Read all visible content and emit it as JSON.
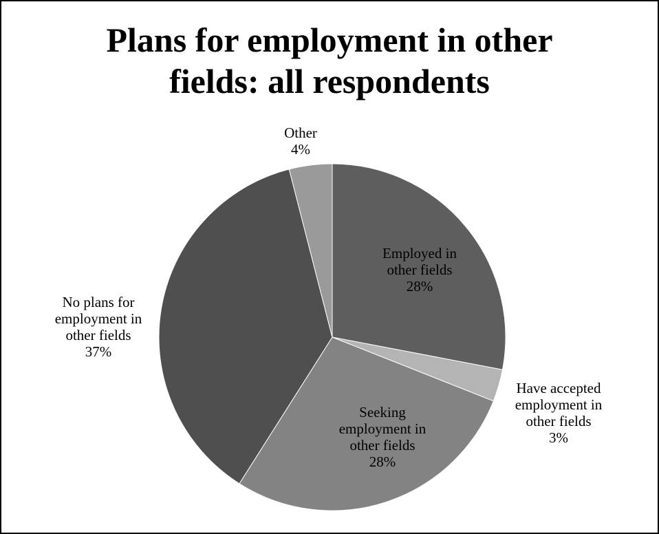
{
  "chart_data": {
    "type": "pie",
    "title_lines": [
      "Plans for employment in other",
      "fields: all respondents"
    ],
    "legend": "none",
    "slices": [
      {
        "label_lines": [
          "Employed in",
          "other fields"
        ],
        "value": 28,
        "value_text": "28%",
        "color": "#5e5e5e"
      },
      {
        "label_lines": [
          "Have accepted",
          "employment in",
          "other fields"
        ],
        "value": 3,
        "value_text": "3%",
        "color": "#b4b4b4"
      },
      {
        "label_lines": [
          "Seeking",
          "employment in",
          "other fields"
        ],
        "value": 28,
        "value_text": "28%",
        "color": "#838383"
      },
      {
        "label_lines": [
          "No plans for",
          "employment in",
          "other fields"
        ],
        "value": 37,
        "value_text": "37%",
        "color": "#4f4f4f"
      },
      {
        "label_lines": [
          "Other"
        ],
        "value": 4,
        "value_text": "4%",
        "color": "#9a9a9a"
      }
    ]
  }
}
